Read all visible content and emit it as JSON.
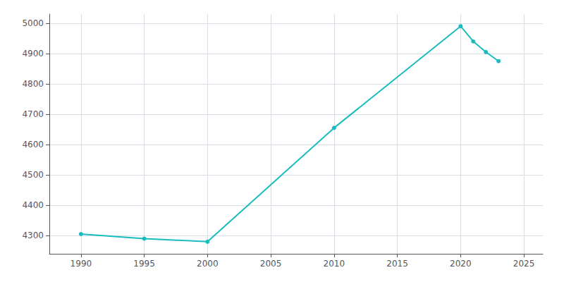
{
  "chart_data": {
    "type": "line",
    "x": [
      1990,
      1995,
      2000,
      2010,
      2020,
      2021,
      2022,
      2023
    ],
    "values": [
      4305,
      4290,
      4280,
      4655,
      4990,
      4940,
      4905,
      4875
    ],
    "color": "#1ABCBE",
    "marker": "circle",
    "xlim": [
      1987.5,
      2026.5
    ],
    "ylim": [
      4240,
      5030
    ],
    "xticks": [
      1990,
      1995,
      2000,
      2005,
      2010,
      2015,
      2020,
      2025
    ],
    "yticks": [
      4300,
      4400,
      4500,
      4600,
      4700,
      4800,
      4900,
      5000
    ],
    "grid": true
  }
}
